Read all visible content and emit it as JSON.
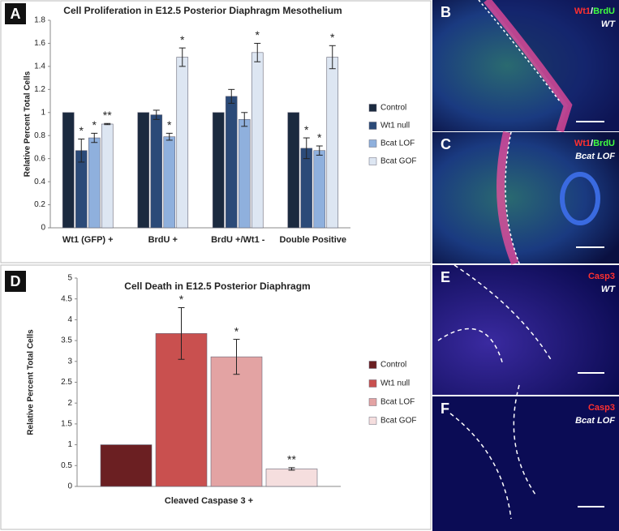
{
  "chart_data": [
    {
      "type": "bar",
      "panel": "A",
      "title": "Cell Proliferation in E12.5 Posterior Diaphragm Mesothelium",
      "y_label": "Relative Percent Total Cells",
      "categories": [
        "Wt1 (GFP) +",
        "BrdU +",
        "BrdU +/Wt1 -",
        "Double Positive"
      ],
      "series": [
        {
          "name": "Control",
          "color": "#1b2a3f",
          "values": [
            1,
            1,
            1,
            1
          ],
          "errors": [
            null,
            null,
            null,
            null
          ],
          "significance": [
            null,
            null,
            null,
            null
          ]
        },
        {
          "name": "Wt1 null",
          "color": "#2b4a78",
          "values": [
            0.67,
            0.98,
            1.14,
            0.69
          ],
          "errors": [
            0.1,
            0.04,
            0.06,
            0.09
          ],
          "significance": [
            "*",
            null,
            null,
            "*"
          ]
        },
        {
          "name": "Bcat LOF",
          "color": "#8fb0dd",
          "values": [
            0.78,
            0.79,
            0.94,
            0.67
          ],
          "errors": [
            0.04,
            0.03,
            0.06,
            0.04
          ],
          "significance": [
            "*",
            "*",
            null,
            "*"
          ]
        },
        {
          "name": "Bcat GOF",
          "color": "#dde6f2",
          "values": [
            0.9,
            1.48,
            1.52,
            1.48
          ],
          "errors": [
            0.005,
            0.08,
            0.08,
            0.1
          ],
          "significance": [
            "**",
            "*",
            "*",
            "*"
          ]
        }
      ],
      "ylim": [
        0,
        1.8
      ],
      "yticks": [
        0,
        0.2,
        0.4,
        0.6,
        0.8,
        1,
        1.2,
        1.4,
        1.6,
        1.8
      ],
      "legend": "right"
    },
    {
      "type": "bar",
      "panel": "D",
      "title": "Cell Death in E12.5 Posterior Diaphragm",
      "y_label": "Relative Percent Total Cells",
      "categories": [
        "Cleaved Caspase 3 +"
      ],
      "series": [
        {
          "name": "Control",
          "color": "#6b1f22",
          "values": [
            1
          ],
          "errors": [
            null
          ],
          "significance": [
            null
          ]
        },
        {
          "name": "Wt1 null",
          "color": "#c9504f",
          "values": [
            3.67
          ],
          "errors": [
            0.62
          ],
          "significance": [
            "*"
          ]
        },
        {
          "name": "Bcat LOF",
          "color": "#e3a3a3",
          "values": [
            3.11
          ],
          "errors": [
            0.42
          ],
          "significance": [
            "*"
          ]
        },
        {
          "name": "Bcat GOF",
          "color": "#f5dede",
          "values": [
            0.42
          ],
          "errors": [
            0.03
          ],
          "significance": [
            "**"
          ]
        }
      ],
      "ylim": [
        0,
        5
      ],
      "yticks": [
        0,
        0.5,
        1,
        1.5,
        2,
        2.5,
        3,
        3.5,
        4,
        4.5,
        5
      ],
      "legend": "right"
    }
  ],
  "images": [
    {
      "panel": "B",
      "stain": [
        {
          "text": "Wt1",
          "color": "#ff3030"
        },
        {
          "text": "/",
          "color": "#ffffff"
        },
        {
          "text": "BrdU",
          "color": "#40ff40"
        }
      ],
      "genotype": "WT"
    },
    {
      "panel": "C",
      "stain": [
        {
          "text": "Wt1",
          "color": "#ff3030"
        },
        {
          "text": "/",
          "color": "#ffffff"
        },
        {
          "text": "BrdU",
          "color": "#40ff40"
        }
      ],
      "genotype": "Bcat LOF"
    },
    {
      "panel": "E",
      "stain": [
        {
          "text": "Casp3",
          "color": "#ff3030"
        }
      ],
      "genotype": "WT"
    },
    {
      "panel": "F",
      "stain": [
        {
          "text": "Casp3",
          "color": "#ff3030"
        }
      ],
      "genotype": "Bcat LOF"
    }
  ]
}
